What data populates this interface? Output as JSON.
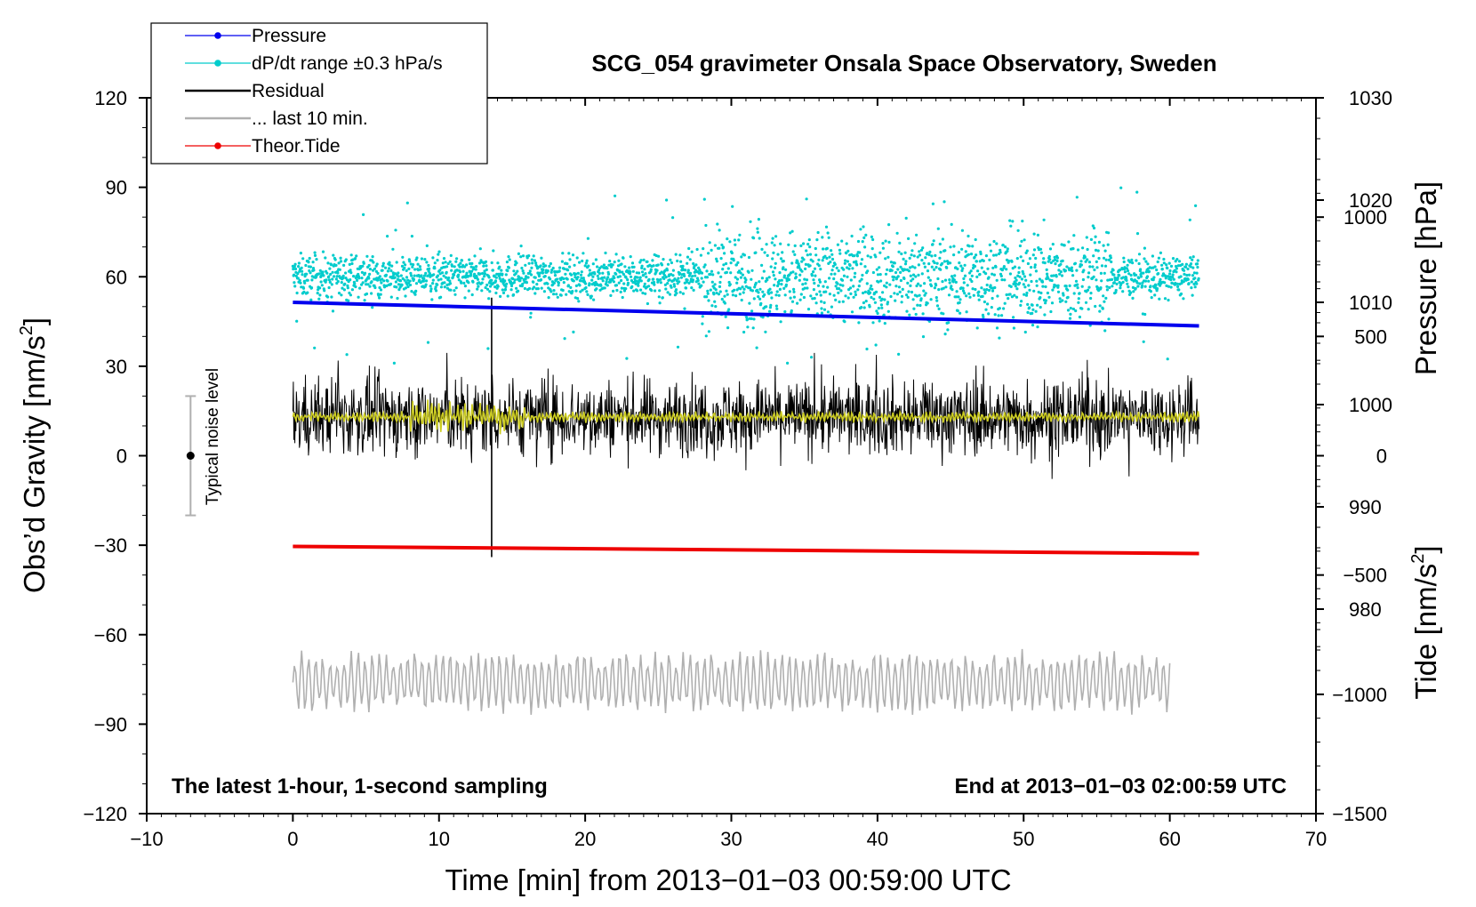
{
  "chart_data": {
    "type": "line",
    "title": "SCG_054 gravimeter Onsala Space Observatory, Sweden",
    "xlabel": "Time [min] from 2013−01−03 00:59:00 UTC",
    "ylabel": "Obs’d Gravity [nm/s²]",
    "ylabel_main": "Obs’d Gravity [nm/s",
    "ylabel_sup": "2",
    "ylabel_close": "]",
    "y2_pressure_label": "Pressure [hPa]",
    "y2_tide_label_main": "Tide [nm/s",
    "y2_tide_label_sup": "2",
    "y2_tide_label_close": "]",
    "xlim": [
      -10,
      70
    ],
    "ylim": [
      -120,
      120
    ],
    "pressure_lim": [
      960,
      1030
    ],
    "tide_lim": [
      -1500,
      1500
    ],
    "x_ticks": [
      "−10",
      "0",
      "10",
      "20",
      "30",
      "40",
      "50",
      "60",
      "70"
    ],
    "x_tick_values": [
      -10,
      0,
      10,
      20,
      30,
      40,
      50,
      60,
      70
    ],
    "y_ticks": [
      "120",
      "90",
      "60",
      "30",
      "0",
      "−30",
      "−60",
      "−90",
      "−120"
    ],
    "y_tick_values": [
      120,
      90,
      60,
      30,
      0,
      -30,
      -60,
      -90,
      -120
    ],
    "pressure_ticks": [
      "1030",
      "1020",
      "1010",
      "1000",
      "990",
      "980"
    ],
    "pressure_tick_values": [
      1030,
      1020,
      1010,
      1000,
      990,
      980
    ],
    "tide_ticks": [
      "1000",
      "500",
      "0",
      "−500",
      "−1000",
      "−1500"
    ],
    "tide_tick_values": [
      1000,
      500,
      0,
      -500,
      -1000,
      -1500
    ],
    "annotation_left": "The latest 1-hour, 1-second sampling",
    "annotation_right": "End at 2013−01−03 02:00:59 UTC",
    "noise_label": "Typical noise level",
    "noise_bar": {
      "x": -7,
      "center": 0,
      "half_range": 20
    },
    "legend": [
      {
        "label": "Pressure",
        "color": "#0000ee",
        "style": "line-dot"
      },
      {
        "label": "dP/dt range ±0.3 hPa/s",
        "color": "#00cccc",
        "style": "line-dot"
      },
      {
        "label": "Residual",
        "color": "#000000",
        "style": "line"
      },
      {
        "label": "... last 10 min.",
        "color": "#b0b0b0",
        "style": "line"
      },
      {
        "label": "Theor.Tide",
        "color": "#ee0000",
        "style": "line-dot"
      }
    ],
    "series": [
      {
        "name": "Pressure",
        "axis": "pressure",
        "color": "#0000ee",
        "x": [
          0,
          62
        ],
        "values": [
          1010,
          1007.7
        ]
      },
      {
        "name": "dP/dt range ±0.3 hPa/s",
        "axis": "gravity",
        "color": "#00cccc",
        "center": 60,
        "typical_spread": 5,
        "max_spread": 30,
        "x_range": [
          0,
          62
        ]
      },
      {
        "name": "Residual",
        "axis": "gravity",
        "color": "#000000",
        "center": 13,
        "typical_spread": 10,
        "x_range": [
          0,
          62
        ],
        "spike_x": 13.6,
        "spike_min": -34,
        "spike_max": 53
      },
      {
        "name": "Residual smoothed",
        "axis": "gravity",
        "color": "#cccc22",
        "center": 13,
        "typical_spread": 2,
        "x_range": [
          0,
          62
        ]
      },
      {
        "name": "... last 10 min.",
        "axis": "gravity",
        "color": "#b0b0b0",
        "center": -76,
        "typical_spread": 8,
        "min": -91,
        "max": -55,
        "x_range": [
          0,
          60
        ]
      },
      {
        "name": "Theor.Tide",
        "axis": "tide",
        "color": "#ee0000",
        "x": [
          0,
          62
        ],
        "values": [
          -380,
          -410
        ]
      }
    ]
  }
}
